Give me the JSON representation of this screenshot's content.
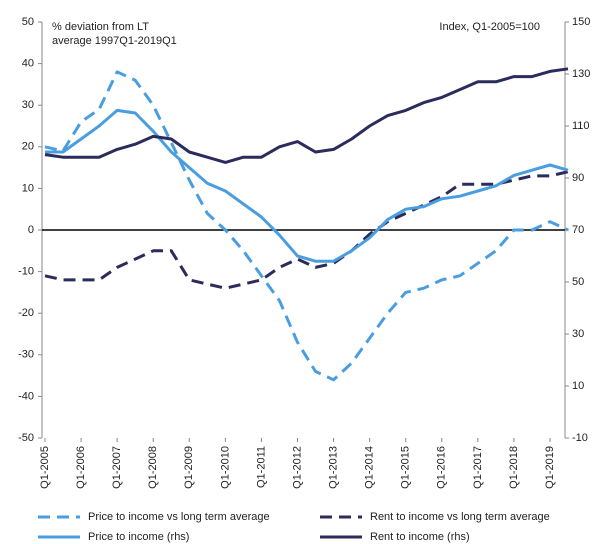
{
  "chart_data": {
    "type": "line",
    "y_label": [
      "% deviation  from LT",
      "average 1997Q1-2019Q1"
    ],
    "y2_label": "Index, Q1-2005=100",
    "categories": [
      "Q1-2005",
      null,
      "Q1-2006",
      null,
      "Q1-2007",
      null,
      "Q1-2008",
      null,
      "Q1-2009",
      null,
      "Q1-2010",
      null,
      "Q1-2011",
      null,
      "Q1-2012",
      null,
      "Q1-2013",
      null,
      "Q1-2014",
      null,
      "Q1-2015",
      null,
      "Q1-2016",
      null,
      "Q1-2017",
      null,
      "Q1-2018",
      null,
      "Q1-2019",
      null
    ],
    "ylim": [
      -50,
      50
    ],
    "yticks": [
      -50,
      -40,
      -30,
      -20,
      -10,
      0,
      10,
      20,
      30,
      40,
      50
    ],
    "y2lim": [
      -10,
      150
    ],
    "y2ticks": [
      -10,
      10,
      30,
      50,
      70,
      90,
      110,
      130,
      150
    ],
    "series": [
      {
        "name": "Price to income vs long term average",
        "color": "#4a9ee0",
        "dashed": true,
        "values": [
          20,
          19,
          26,
          29,
          38,
          36,
          30,
          21,
          12,
          4,
          0,
          -5,
          -11,
          -17,
          -27,
          -34,
          -36,
          -32,
          -26,
          -20,
          -15,
          -14,
          -12,
          -11,
          -8,
          -5,
          0,
          0,
          2,
          0
        ]
      },
      {
        "name": "Rent to income vs long term average",
        "color": "#2b2b5c",
        "dashed": true,
        "values": [
          -11,
          -12,
          -12,
          -12,
          -9,
          -7,
          -5,
          -5,
          -12,
          -13,
          -14,
          -13,
          -12,
          -9,
          -7,
          -9,
          -8,
          -5,
          -1,
          2,
          4,
          6,
          8,
          11,
          11,
          11,
          12,
          13,
          13,
          14
        ]
      },
      {
        "name": "Price to income (rhs)",
        "color": "#4a9ee0",
        "dashed": false,
        "axis": "y2",
        "values": [
          100,
          100,
          105,
          110,
          116,
          115,
          108,
          100,
          94,
          88,
          85,
          80,
          75,
          68,
          60,
          58,
          58,
          62,
          67,
          74,
          78,
          79,
          82,
          83,
          85,
          87,
          91,
          93,
          95,
          93
        ]
      },
      {
        "name": "Rent to income (rhs)",
        "color": "#2b2b5c",
        "dashed": false,
        "axis": "y2",
        "values": [
          99,
          98,
          98,
          98,
          101,
          103,
          106,
          105,
          100,
          98,
          96,
          98,
          98,
          102,
          104,
          100,
          101,
          105,
          110,
          114,
          116,
          119,
          121,
          124,
          127,
          127,
          129,
          129,
          131,
          132
        ]
      }
    ]
  }
}
